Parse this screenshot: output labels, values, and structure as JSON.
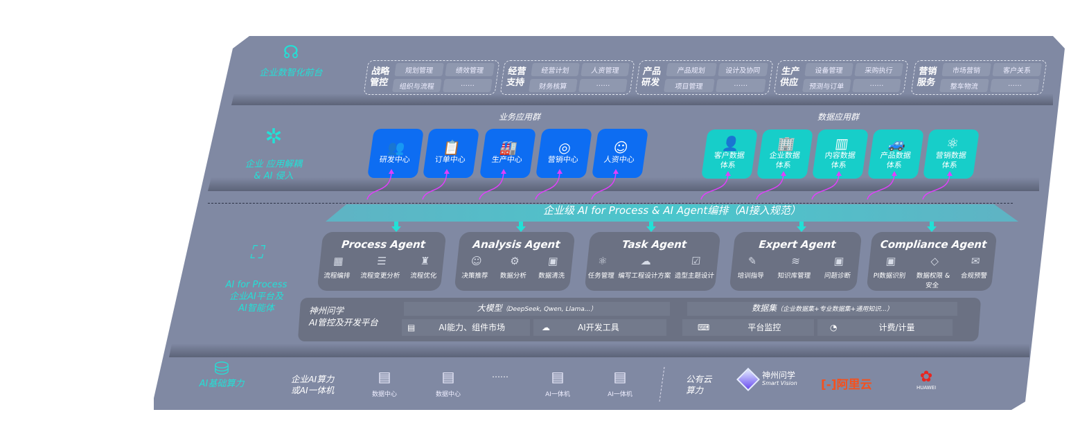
{
  "layers": {
    "front": {
      "label": "企业数智化前台",
      "icon": "brain-icon"
    },
    "apps": {
      "label": "企业 应用解耦\n& AI 侵入",
      "icon": "molecule-icon"
    },
    "ai": {
      "label": "AI for Process\n企业AI平台及\nAI智能体",
      "icon": "face-scan-icon"
    },
    "infra": {
      "label": "AI基础算力",
      "icon": "database-icon"
    }
  },
  "front_groups": [
    {
      "title": "战略\n管控",
      "items": [
        "规划管理",
        "绩效管理",
        "组织与流程",
        "……"
      ]
    },
    {
      "title": "经营\n支持",
      "items": [
        "经营计划",
        "人资管理",
        "财务核算",
        "……"
      ]
    },
    {
      "title": "产品\n研发",
      "items": [
        "产品规划",
        "设计及协同",
        "项目管理",
        "……"
      ]
    },
    {
      "title": "生产\n供应",
      "items": [
        "设备管理",
        "采购执行",
        "预测与订单",
        "……"
      ]
    },
    {
      "title": "营销\n服务",
      "items": [
        "市场营销",
        "客户关系",
        "整车物流",
        "……"
      ]
    }
  ],
  "business_apps": {
    "title": "业务应用群",
    "items": [
      {
        "label": "研发中心",
        "icon": "users-icon"
      },
      {
        "label": "订单中心",
        "icon": "clipboard-icon"
      },
      {
        "label": "生产中心",
        "icon": "factory-icon"
      },
      {
        "label": "营销中心",
        "icon": "target-icon"
      },
      {
        "label": "人资中心",
        "icon": "person-icon"
      }
    ]
  },
  "data_apps": {
    "title": "数据应用群",
    "items": [
      {
        "label": "客户数据\n体系",
        "icon": "user-icon"
      },
      {
        "label": "企业数据\n体系",
        "icon": "building-icon"
      },
      {
        "label": "内容数据\n体系",
        "icon": "books-icon"
      },
      {
        "label": "产品数据\n体系",
        "icon": "car-icon"
      },
      {
        "label": "营销数据\n体系",
        "icon": "atom-icon"
      }
    ]
  },
  "orchestration": "企业级 AI for Process & AI Agent编排（AI接入规范）",
  "agents": [
    {
      "name": "Process Agent",
      "items": [
        "流程编排",
        "流程变更分析",
        "流程优化"
      ]
    },
    {
      "name": "Analysis Agent",
      "items": [
        "决策推荐",
        "数据分析",
        "数据清洗"
      ]
    },
    {
      "name": "Task Agent",
      "items": [
        "任务管理",
        "编写工程设计方案",
        "造型主题设计"
      ]
    },
    {
      "name": "Expert Agent",
      "items": [
        "培训指导",
        "知识库管理",
        "问题诊断"
      ]
    },
    {
      "name": "Compliance Agent",
      "items": [
        "PI数据识别",
        "数据权限 &\n安全",
        "合规预警"
      ]
    }
  ],
  "platform": {
    "title": "神州问学\nAI管控及开发平台",
    "model": "大模型",
    "model_note": "（DeepSeek, Qwen, Llama...）",
    "dataset": "数据集",
    "dataset_note": "（企业数据集+专业数据集+通用知识...）",
    "tools": [
      "AI能力、组件市场",
      "AI开发工具",
      "平台监控",
      "计费/计量"
    ]
  },
  "infra": {
    "private_label": "企业AI算力\n或AI一体机",
    "servers": [
      "数据中心",
      "数据中心",
      "AI一体机",
      "AI一体机"
    ],
    "ellipsis": "……",
    "public_label": "公有云\n算力",
    "vendors": [
      {
        "name": "神州问学",
        "sub": "Smart Vision"
      },
      {
        "name": "阿里云",
        "color": "#f4511e"
      },
      {
        "name": "HUAWEI",
        "color": "#e8251f"
      }
    ]
  },
  "colors": {
    "accent": "#23e0d6",
    "business": "#0d6df2",
    "data": "#17cec9",
    "arrow": "#e040fb",
    "panel": "#8089a3"
  }
}
